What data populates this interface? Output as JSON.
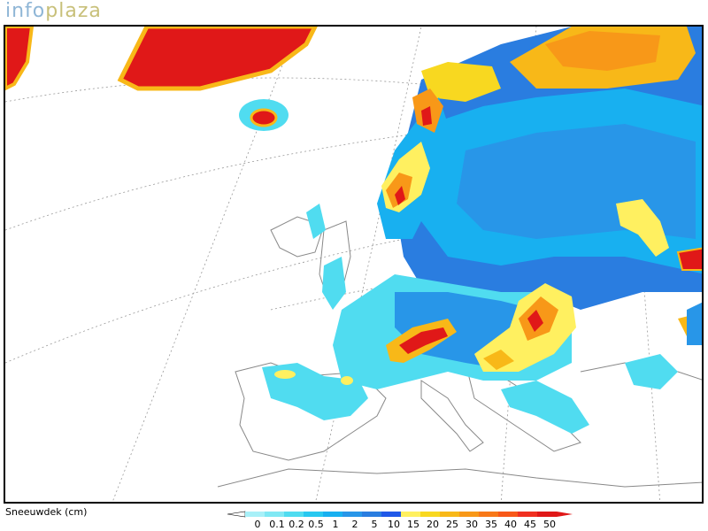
{
  "logo": {
    "part1": "info",
    "part2": "plaza"
  },
  "legend": {
    "title": "Sneeuwdek (cm)",
    "labels": [
      "0",
      "0.1",
      "0.2",
      "0.5",
      "1",
      "2",
      "5",
      "10",
      "15",
      "20",
      "25",
      "30",
      "35",
      "40",
      "45",
      "50"
    ],
    "colors": [
      "#a8f0f8",
      "#80e8f4",
      "#50dcf0",
      "#28c8f0",
      "#18b0f0",
      "#2896e8",
      "#2a7de0",
      "#2058e8",
      "#fff060",
      "#f8d820",
      "#f8b818",
      "#f89818",
      "#f87818",
      "#f85818",
      "#f03020",
      "#e01818"
    ]
  },
  "map": {
    "region": "Europe",
    "variable": "snow-depth"
  }
}
